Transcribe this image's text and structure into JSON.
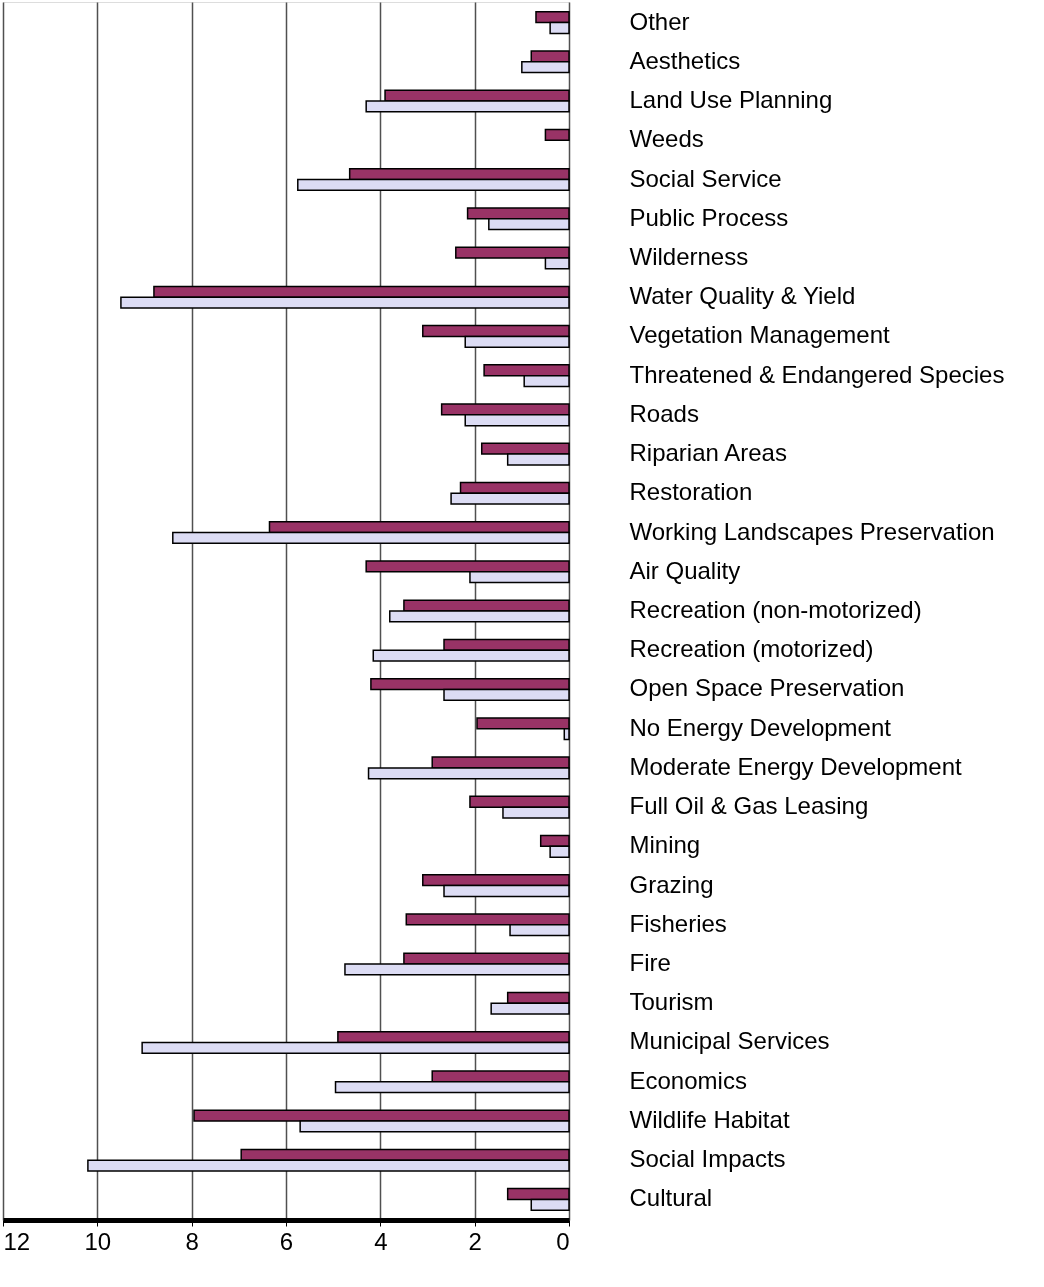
{
  "chart_data": {
    "type": "bar",
    "orientation": "horizontal",
    "categories": [
      "Other",
      "Aesthetics",
      "Land Use Planning",
      "Weeds",
      "Social Service",
      "Public Process",
      "Wilderness",
      "Water Quality & Yield",
      "Vegetation Management",
      "Threatened & Endangered Species",
      "Roads",
      "Riparian Areas",
      "Restoration",
      "Working Landscapes Preservation",
      "Air Quality",
      "Recreation (non-motorized)",
      "Recreation (motorized)",
      "Open Space Preservation",
      "No Energy Development",
      "Moderate Energy Development",
      "Full Oil & Gas Leasing",
      "Mining",
      "Grazing",
      "Fisheries",
      "Fire",
      "Tourism",
      "Municipal Services",
      "Economics",
      "Wildlife Habitat",
      "Social Impacts",
      "Cultural"
    ],
    "series": [
      {
        "color": "#993366",
        "values": [
          0.7,
          0.8,
          3.9,
          0.5,
          4.65,
          2.15,
          2.4,
          8.8,
          3.1,
          1.8,
          2.7,
          1.85,
          2.3,
          6.35,
          4.3,
          3.5,
          2.65,
          4.2,
          1.95,
          2.9,
          2.1,
          0.6,
          3.1,
          3.45,
          3.5,
          1.3,
          4.9,
          2.9,
          7.95,
          6.95,
          1.3
        ]
      },
      {
        "color": "#dcdcf4",
        "values": [
          0.4,
          1.0,
          4.3,
          null,
          5.75,
          1.7,
          0.5,
          9.5,
          2.2,
          0.95,
          2.2,
          1.3,
          2.5,
          8.4,
          2.1,
          3.8,
          4.15,
          2.65,
          0.1,
          4.25,
          1.4,
          0.4,
          2.65,
          1.25,
          4.75,
          1.65,
          9.05,
          4.95,
          5.7,
          10.2,
          0.8
        ]
      }
    ],
    "xlim": [
      12,
      0
    ],
    "xticks": [
      12,
      10,
      8,
      6,
      4,
      2,
      0
    ],
    "grid": "x",
    "legend": false
  }
}
